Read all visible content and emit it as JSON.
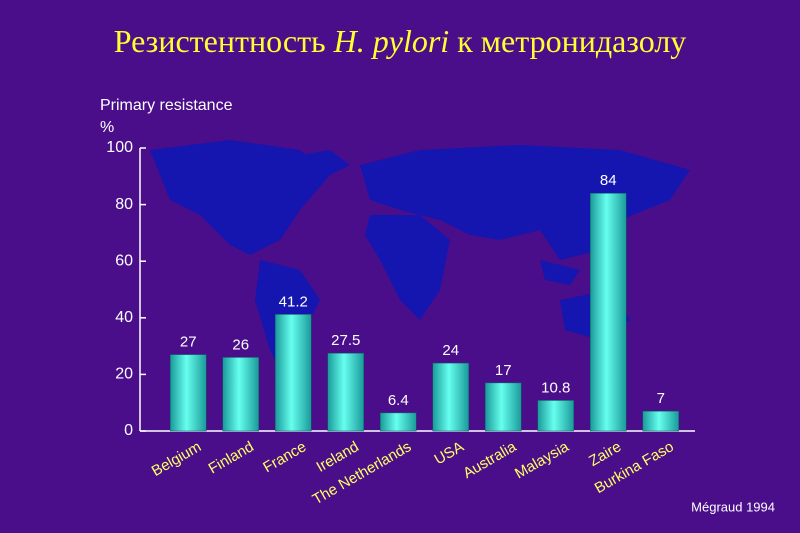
{
  "chart_data": {
    "type": "bar",
    "title": [
      "Резистентность ",
      "H. pylori",
      " к метронидазолу"
    ],
    "y_label": [
      "Primary resistance",
      "%"
    ],
    "source": "Mégraud 1994",
    "categories": [
      "Belgium",
      "Finland",
      "France",
      "Ireland",
      "The Netherlands",
      "USA",
      "Australia",
      "Malaysia",
      "Zaire",
      "Burkina Faso"
    ],
    "values": [
      27,
      26,
      41.2,
      27.5,
      6.4,
      24,
      17,
      10.8,
      84,
      7
    ],
    "color": "#33dddd",
    "ylim": [
      0,
      100
    ],
    "yticks": [
      0,
      20,
      40,
      60,
      80,
      100
    ]
  }
}
